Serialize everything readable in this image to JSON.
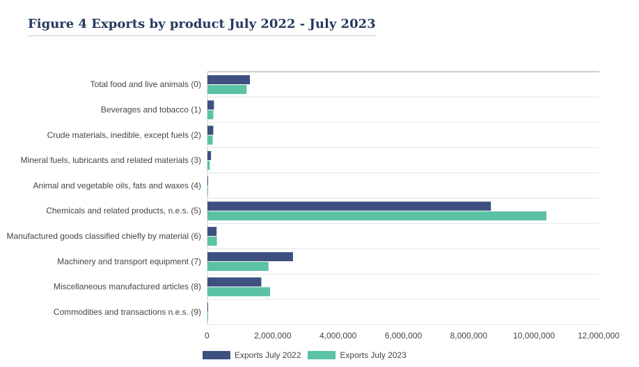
{
  "chart_data": {
    "type": "bar",
    "orientation": "horizontal",
    "title": "Figure 4 Exports by product July 2022 - July 2023",
    "categories": [
      "Total food and live animals (0)",
      "Beverages and tobacco (1)",
      "Crude materials, inedible, except fuels (2)",
      "Mineral fuels, lubricants and related materials (3)",
      "Animal and vegetable oils, fats and waxes (4)",
      "Chemicals and related products, n.e.s. (5)",
      "Manufactured goods classified chiefly by material (6)",
      "Machinery and transport equipment (7)",
      "Miscellaneous manufactured articles (8)",
      "Commodities and transactions n.e.s. (9)"
    ],
    "series": [
      {
        "name": "Exports July 2022",
        "color": "#3d5080",
        "values": [
          1300000,
          200000,
          180000,
          110000,
          10000,
          8680000,
          280000,
          2620000,
          1650000,
          10000
        ]
      },
      {
        "name": "Exports July 2023",
        "color": "#5bc2a4",
        "values": [
          1200000,
          180000,
          160000,
          70000,
          10000,
          10380000,
          290000,
          1870000,
          1920000,
          10000
        ]
      }
    ],
    "xlim": [
      0,
      12000000
    ],
    "x_ticks": [
      "0",
      "2,000,000",
      "4,000,000",
      "6,000,000",
      "8,000,000",
      "10,000,000",
      "12,000,000"
    ],
    "x_tick_values": [
      0,
      2000000,
      4000000,
      6000000,
      8000000,
      10000000,
      12000000
    ],
    "legend_position": "bottom-left",
    "grid": "horizontal-separators"
  }
}
